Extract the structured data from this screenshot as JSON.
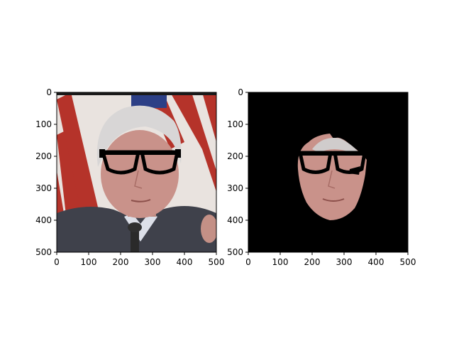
{
  "figure": {
    "panels": [
      {
        "id": "left",
        "description_free": true,
        "image_kind": "photo-with-glasses-overlay",
        "xticks": [
          "0",
          "100",
          "200",
          "300",
          "400",
          "500"
        ],
        "yticks": [
          "0",
          "100",
          "200",
          "300",
          "400",
          "500"
        ]
      },
      {
        "id": "right",
        "image_kind": "masked-face-on-black",
        "xticks": [
          "0",
          "100",
          "200",
          "300",
          "400",
          "500"
        ],
        "yticks": [
          "0",
          "100",
          "200",
          "300",
          "400",
          "500"
        ]
      }
    ],
    "colors": {
      "background": "#ffffff",
      "mask_background": "#000000",
      "axis": "#000000",
      "flag_red": "#b5332a",
      "flag_white": "#e9e3df",
      "flag_blue": "#2c3f86",
      "suit": "#3f414b",
      "skin": "#c9928a",
      "hair": "#d8d6d6",
      "glasses": "#000000"
    }
  }
}
